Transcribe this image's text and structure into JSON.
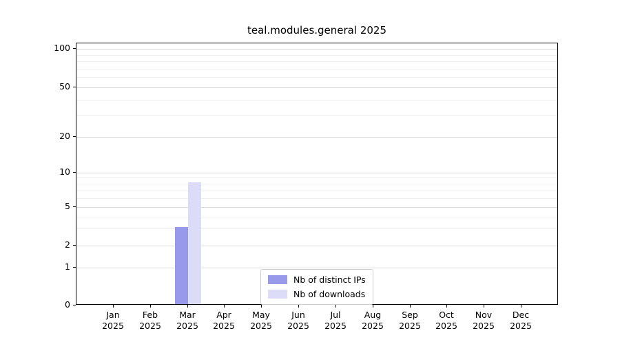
{
  "chart_data": {
    "type": "bar",
    "title": "teal.modules.general 2025",
    "categories": [
      "Jan 2025",
      "Feb 2025",
      "Mar 2025",
      "Apr 2025",
      "May 2025",
      "Jun 2025",
      "Jul 2025",
      "Aug 2025",
      "Sep 2025",
      "Oct 2025",
      "Nov 2025",
      "Dec 2025"
    ],
    "series": [
      {
        "name": "Nb of distinct IPs",
        "color": "#9999ec",
        "values": [
          0,
          0,
          3,
          0,
          0,
          0,
          0,
          0,
          0,
          0,
          0,
          0
        ]
      },
      {
        "name": "Nb of downloads",
        "color": "#dcdcf8",
        "values": [
          0,
          0,
          8,
          0,
          0,
          0,
          0,
          0,
          0,
          0,
          0,
          0
        ]
      }
    ],
    "yscale": "symlog",
    "yticks": [
      0,
      1,
      2,
      5,
      10,
      20,
      50,
      100
    ],
    "minor_yticks": [
      3,
      4,
      6,
      7,
      8,
      9,
      30,
      40,
      60,
      70,
      80,
      90
    ],
    "ylim": [
      0,
      110
    ],
    "grid": true,
    "legend": {
      "position": "lower center"
    }
  }
}
